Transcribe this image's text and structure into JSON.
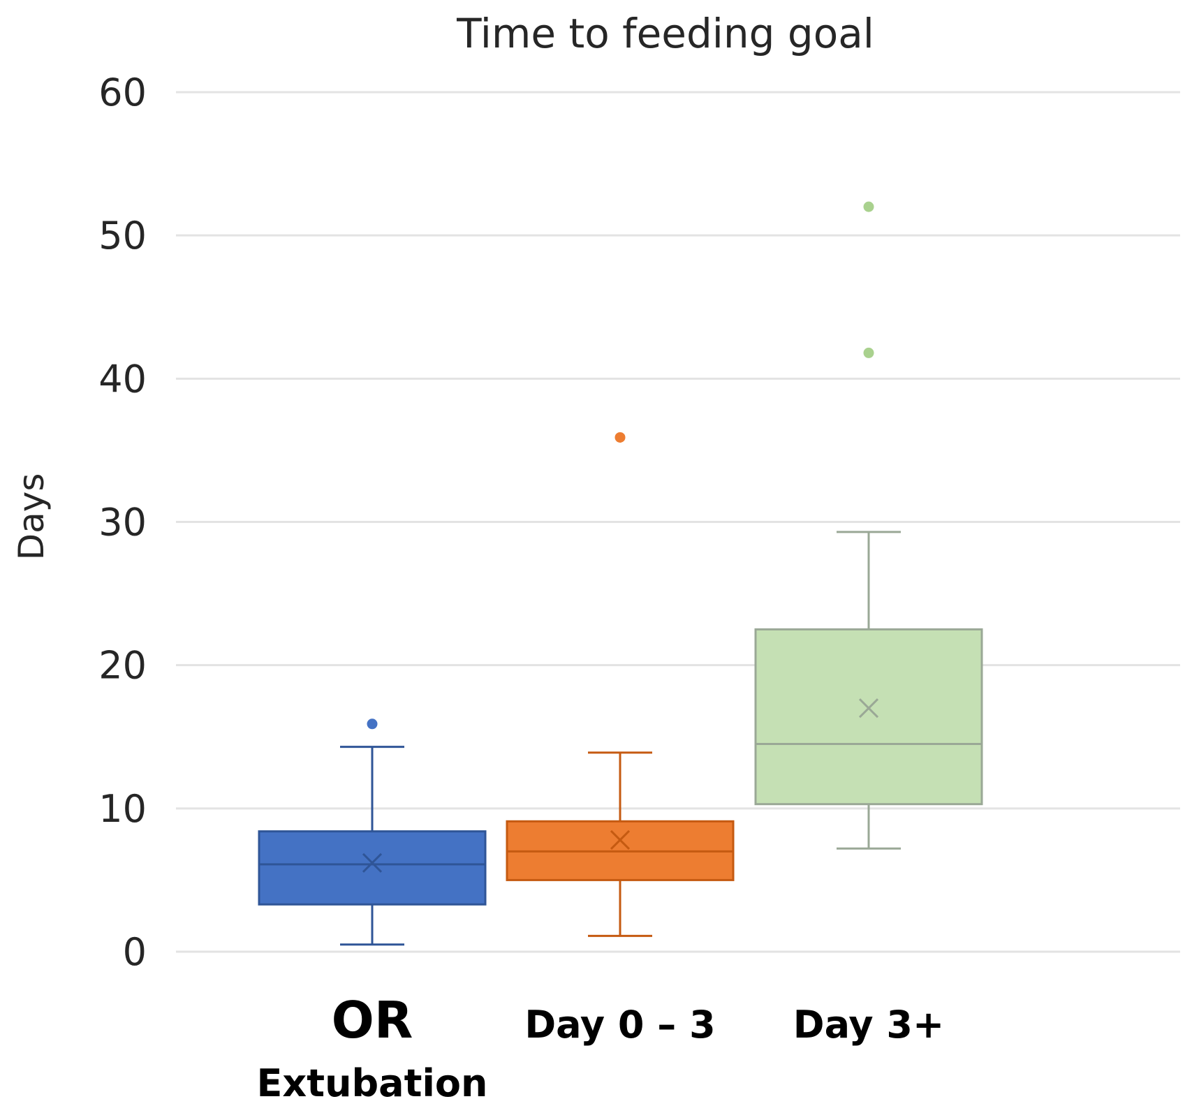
{
  "chart_data": {
    "type": "box",
    "title": "Time to feeding goal",
    "ylabel": "Days",
    "xlabel": "",
    "ylim": [
      0,
      60
    ],
    "yticks": [
      0,
      10,
      20,
      30,
      40,
      50,
      60
    ],
    "grid": true,
    "categories": [
      {
        "lines": [
          "OR",
          "Extubation"
        ]
      },
      {
        "lines": [
          "Day 0 – 3"
        ]
      },
      {
        "lines": [
          "Day 3+"
        ]
      }
    ],
    "series": [
      {
        "name": "OR Extubation",
        "color": "#4472c4",
        "fill": "#4472c4",
        "line": "#2f5597",
        "whisker_low": 0.5,
        "q1": 3.3,
        "median": 6.1,
        "q3": 8.4,
        "whisker_high": 14.3,
        "mean": 6.2,
        "outliers": [
          15.9
        ]
      },
      {
        "name": "Day 0 – 3",
        "color": "#ed7d31",
        "fill": "#ed7d31",
        "line": "#c55a11",
        "whisker_low": 1.1,
        "q1": 5.0,
        "median": 7.0,
        "q3": 9.1,
        "whisker_high": 13.9,
        "mean": 7.8,
        "outliers": [
          35.9
        ]
      },
      {
        "name": "Day 3+",
        "color": "#c5e0b4",
        "fill": "#c5e0b4",
        "line": "#9aa896",
        "whisker_low": 7.2,
        "q1": 10.3,
        "median": 14.5,
        "q3": 22.5,
        "whisker_high": 29.3,
        "mean": 17.0,
        "outliers": [
          41.8,
          52.0
        ]
      }
    ]
  }
}
